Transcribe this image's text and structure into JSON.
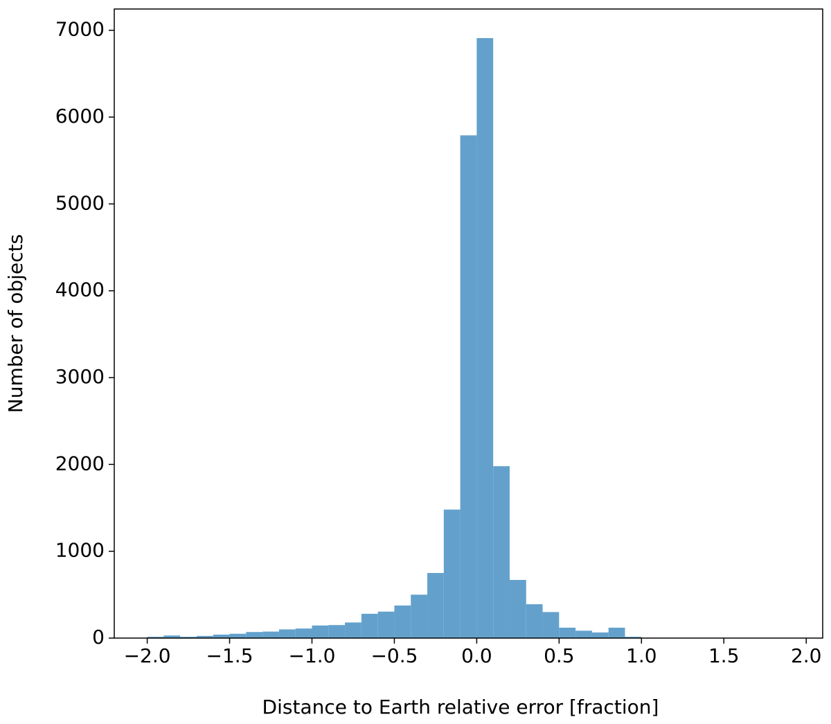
{
  "chart_data": {
    "type": "histogram",
    "x_label": "Distance to Earth relative error [fraction]",
    "y_label": "Number of objects",
    "bins": [
      -2.0,
      -1.9,
      -1.8,
      -1.7,
      -1.6,
      -1.5,
      -1.4,
      -1.3,
      -1.2,
      -1.1,
      -1.0,
      -0.9,
      -0.8,
      -0.7,
      -0.6,
      -0.5,
      -0.4,
      -0.3,
      -0.2,
      -0.1,
      0.0,
      0.1,
      0.2,
      0.3,
      0.4,
      0.5,
      0.6,
      0.7,
      0.8,
      0.9,
      1.0
    ],
    "values": [
      15,
      30,
      15,
      25,
      40,
      50,
      70,
      75,
      100,
      110,
      145,
      150,
      180,
      280,
      305,
      375,
      500,
      750,
      1480,
      5790,
      6910,
      1980,
      670,
      390,
      300,
      120,
      85,
      65,
      120,
      15
    ],
    "color": "#63a1cc",
    "xlim": [
      -2.2,
      2.1
    ],
    "xticks": [
      {
        "value": -2.0,
        "label": "−2.0"
      },
      {
        "value": -1.5,
        "label": "−1.5"
      },
      {
        "value": -1.0,
        "label": "−1.0"
      },
      {
        "value": -0.5,
        "label": "−0.5"
      },
      {
        "value": 0.0,
        "label": "0.0"
      },
      0.5,
      {
        "value": 1.0,
        "label": "1.0"
      },
      1.5,
      {
        "value": 2.0,
        "label": "2.0"
      }
    ],
    "ylim": [
      0,
      7245
    ],
    "yticks": [
      0,
      1000,
      2000,
      3000,
      4000,
      5000,
      6000,
      7000
    ]
  }
}
